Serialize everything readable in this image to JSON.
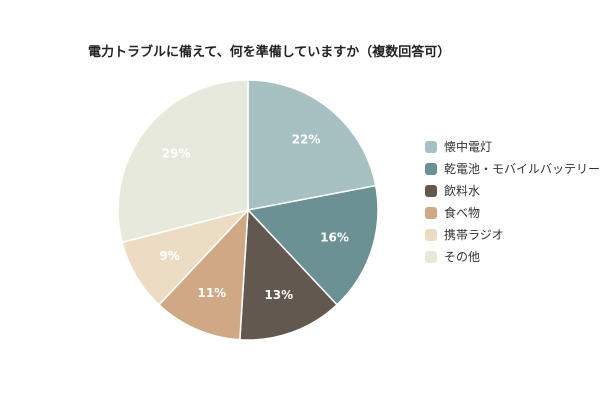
{
  "chart_data": {
    "type": "pie",
    "title": "電力トラブルに備えて、何を準備していますか（複数回答可）",
    "categories": [
      "懐中電灯",
      "乾電池・モバイルバッテリー",
      "飲料水",
      "食べ物",
      "携帯ラジオ",
      "その他"
    ],
    "values": [
      22,
      16,
      13,
      11,
      9,
      29
    ],
    "value_labels": [
      "22%",
      "16%",
      "13%",
      "11%",
      "9%",
      "29%"
    ],
    "colors": [
      "#a7c1c2",
      "#6b9195",
      "#635850",
      "#cfa985",
      "#ecdcc4",
      "#e8e9dd"
    ],
    "legend_position": "right"
  }
}
